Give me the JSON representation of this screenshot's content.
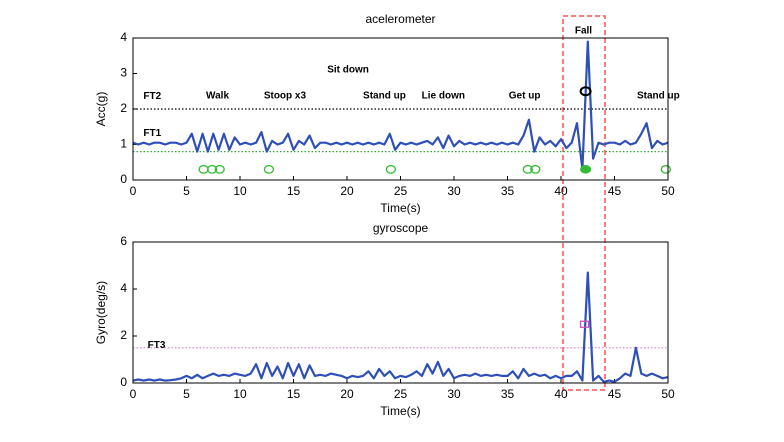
{
  "chart_data": [
    {
      "type": "line",
      "title": "acelerometer",
      "xlabel": "Time(s)",
      "ylabel": "Acc(g)",
      "xlim": [
        0,
        50
      ],
      "xticks": [
        0,
        5,
        10,
        15,
        20,
        25,
        30,
        35,
        40,
        45,
        50
      ],
      "ylim": [
        0,
        4
      ],
      "yticks": [
        0,
        1,
        2,
        3,
        4
      ],
      "x": [
        0,
        0.5,
        1,
        1.5,
        2,
        2.5,
        3,
        3.5,
        4,
        4.5,
        5,
        5.5,
        6,
        6.5,
        7,
        7.5,
        8,
        8.5,
        9,
        9.5,
        10,
        10.5,
        11,
        11.5,
        12,
        12.5,
        13,
        13.5,
        14,
        14.5,
        15,
        15.5,
        16,
        16.5,
        17,
        17.5,
        18,
        18.5,
        19,
        19.5,
        20,
        20.5,
        21,
        21.5,
        22,
        22.5,
        23,
        23.5,
        24,
        24.5,
        25,
        25.5,
        26,
        26.5,
        27,
        27.5,
        28,
        28.5,
        29,
        29.5,
        30,
        30.5,
        31,
        31.5,
        32,
        32.5,
        33,
        33.5,
        34,
        34.5,
        35,
        35.5,
        36,
        36.5,
        37,
        37.5,
        38,
        38.5,
        39,
        39.5,
        40,
        40.5,
        41,
        41.5,
        42,
        42.5,
        43,
        43.5,
        44,
        44.5,
        45,
        45.5,
        46,
        46.5,
        47,
        47.5,
        48,
        48.5,
        49,
        49.5,
        50
      ],
      "series": [
        {
          "color": "#2f4fb8",
          "values": [
            1.05,
            1.0,
            1.05,
            1.0,
            1.05,
            1.05,
            1.0,
            1.05,
            1.05,
            1.0,
            1.05,
            1.3,
            0.8,
            1.3,
            0.8,
            1.3,
            0.85,
            1.3,
            0.85,
            1.2,
            1.0,
            1.05,
            1.0,
            1.05,
            1.35,
            0.8,
            1.1,
            1.0,
            1.05,
            1.3,
            0.85,
            1.1,
            1.0,
            1.25,
            0.9,
            1.05,
            1.05,
            1.0,
            1.05,
            1.0,
            1.05,
            1.0,
            1.05,
            1.0,
            1.05,
            1.0,
            1.05,
            1.0,
            1.3,
            0.85,
            1.05,
            1.0,
            1.05,
            1.0,
            1.05,
            1.1,
            1.0,
            1.2,
            0.9,
            1.25,
            0.95,
            1.1,
            1.0,
            1.05,
            1.0,
            1.05,
            1.0,
            1.05,
            1.0,
            1.05,
            1.0,
            1.05,
            1.0,
            1.25,
            1.7,
            0.8,
            1.2,
            1.0,
            1.1,
            0.95,
            1.15,
            0.9,
            1.05,
            1.6,
            0.3,
            3.9,
            0.6,
            1.05,
            1.0,
            1.05,
            1.05,
            1.0,
            1.1,
            1.0,
            1.05,
            1.3,
            1.6,
            0.9,
            1.1,
            1.0,
            1.05
          ]
        }
      ],
      "hlines": [
        {
          "value": 2,
          "color": "#000000"
        },
        {
          "value": 0.8,
          "color": "#33aa33"
        }
      ],
      "markers": {
        "color": "#33bb33",
        "x": [
          6.6,
          7.4,
          8.1,
          12.7,
          24.1,
          36.9,
          37.6,
          49.8
        ],
        "y": [
          0.3,
          0.3,
          0.3,
          0.3,
          0.3,
          0.3,
          0.3,
          0.3
        ]
      },
      "fall_marker": {
        "color": "#33bb33",
        "x": 42.3,
        "y": 0.3
      },
      "detection": {
        "color": "#000000",
        "x": 42.3,
        "y": 2.5
      },
      "annotations": [
        {
          "text": "FT2",
          "x": 1.8,
          "y": 2.35
        },
        {
          "text": "FT1",
          "x": 1.8,
          "y": 1.32
        },
        {
          "text": "Walk",
          "x": 7.9,
          "y": 2.37
        },
        {
          "text": "Stoop x3",
          "x": 14.2,
          "y": 2.37
        },
        {
          "text": "Sit down",
          "x": 20.1,
          "y": 3.1
        },
        {
          "text": "Stand up",
          "x": 23.5,
          "y": 2.37
        },
        {
          "text": "Lie down",
          "x": 29,
          "y": 2.37
        },
        {
          "text": "Get up",
          "x": 36.6,
          "y": 2.37
        },
        {
          "text": "Fall",
          "x": 42.1,
          "y": 4.2
        },
        {
          "text": "Stand up",
          "x": 49.1,
          "y": 2.37
        }
      ]
    },
    {
      "type": "line",
      "title": "gyroscope",
      "xlabel": "Time(s)",
      "ylabel": "Gyro(deg/s)",
      "xlim": [
        0,
        50
      ],
      "xticks": [
        0,
        5,
        10,
        15,
        20,
        25,
        30,
        35,
        40,
        45,
        50
      ],
      "ylim": [
        0,
        6
      ],
      "yticks": [
        0,
        2,
        4,
        6
      ],
      "x": [
        0,
        0.5,
        1,
        1.5,
        2,
        2.5,
        3,
        3.5,
        4,
        4.5,
        5,
        5.5,
        6,
        6.5,
        7,
        7.5,
        8,
        8.5,
        9,
        9.5,
        10,
        10.5,
        11,
        11.5,
        12,
        12.5,
        13,
        13.5,
        14,
        14.5,
        15,
        15.5,
        16,
        16.5,
        17,
        17.5,
        18,
        18.5,
        19,
        19.5,
        20,
        20.5,
        21,
        21.5,
        22,
        22.5,
        23,
        23.5,
        24,
        24.5,
        25,
        25.5,
        26,
        26.5,
        27,
        27.5,
        28,
        28.5,
        29,
        29.5,
        30,
        30.5,
        31,
        31.5,
        32,
        32.5,
        33,
        33.5,
        34,
        34.5,
        35,
        35.5,
        36,
        36.5,
        37,
        37.5,
        38,
        38.5,
        39,
        39.5,
        40,
        40.5,
        41,
        41.5,
        42,
        42.5,
        43,
        43.5,
        44,
        44.5,
        45,
        45.5,
        46,
        46.5,
        47,
        47.5,
        48,
        48.5,
        49,
        49.5,
        50
      ],
      "series": [
        {
          "color": "#2f4fb8",
          "values": [
            0.1,
            0.15,
            0.1,
            0.15,
            0.1,
            0.15,
            0.1,
            0.12,
            0.15,
            0.2,
            0.3,
            0.2,
            0.35,
            0.2,
            0.3,
            0.4,
            0.3,
            0.35,
            0.3,
            0.4,
            0.35,
            0.3,
            0.4,
            0.8,
            0.2,
            0.85,
            0.3,
            0.7,
            0.2,
            0.85,
            0.3,
            0.8,
            0.2,
            0.75,
            0.3,
            0.35,
            0.3,
            0.4,
            0.35,
            0.3,
            0.2,
            0.3,
            0.25,
            0.3,
            0.5,
            0.2,
            0.6,
            0.3,
            0.5,
            0.2,
            0.3,
            0.25,
            0.35,
            0.5,
            0.3,
            0.8,
            0.4,
            0.9,
            0.3,
            0.6,
            0.2,
            0.3,
            0.35,
            0.3,
            0.4,
            0.3,
            0.35,
            0.3,
            0.35,
            0.3,
            0.3,
            0.5,
            0.2,
            0.6,
            0.3,
            0.4,
            0.3,
            0.35,
            0.2,
            0.3,
            0.2,
            0.3,
            0.3,
            0.5,
            0.1,
            4.7,
            0.1,
            0.3,
            0.05,
            0.1,
            0.05,
            0.2,
            0.4,
            0.3,
            1.5,
            0.4,
            0.3,
            0.4,
            0.3,
            0.2,
            0.25
          ]
        }
      ],
      "hlines": [
        {
          "value": 1.5,
          "color": "#e08ad8"
        }
      ],
      "detection": {
        "color": "#d050c0",
        "x": 42.2,
        "y": 2.5,
        "shape": "square"
      },
      "annotations": [
        {
          "text": "FT3",
          "x": 2.2,
          "y": 1.6
        }
      ]
    }
  ]
}
